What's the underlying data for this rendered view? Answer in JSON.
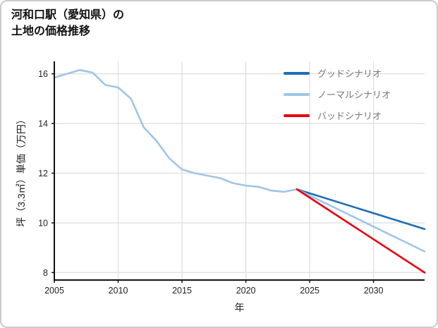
{
  "header": {
    "title_lines": [
      "河和口駅（愛知県）の",
      "土地の価格推移"
    ]
  },
  "chart_data": {
    "type": "line",
    "title": "河和口駅（愛知県）の土地の価格推移",
    "xlabel": "年",
    "ylabel": "坪（3.3㎡）単価（万円）",
    "xlim": [
      2005,
      2034
    ],
    "ylim": [
      7.7,
      16.5
    ],
    "xticks": [
      2005,
      2010,
      2015,
      2020,
      2025,
      2030
    ],
    "yticks": [
      8,
      10,
      12,
      14,
      16
    ],
    "grid": true,
    "legend_position": "upper-right",
    "history": {
      "color": "#9fc5e8",
      "x": [
        2005,
        2006,
        2007,
        2008,
        2009,
        2010,
        2011,
        2012,
        2013,
        2014,
        2015,
        2016,
        2017,
        2018,
        2019,
        2020,
        2021,
        2022,
        2023,
        2024
      ],
      "values": [
        15.85,
        16.0,
        16.15,
        16.05,
        15.55,
        15.45,
        15.0,
        13.85,
        13.3,
        12.6,
        12.15,
        12.0,
        11.9,
        11.8,
        11.6,
        11.5,
        11.45,
        11.3,
        11.25,
        11.35
      ]
    },
    "scenarios": [
      {
        "name": "グッドシナリオ",
        "color": "#1f6eb4",
        "x": [
          2024,
          2034
        ],
        "values": [
          11.35,
          9.75
        ]
      },
      {
        "name": "ノーマルシナリオ",
        "color": "#9fc5e8",
        "x": [
          2024,
          2034
        ],
        "values": [
          11.35,
          8.85
        ]
      },
      {
        "name": "バッドシナリオ",
        "color": "#e8000d",
        "x": [
          2024,
          2034
        ],
        "values": [
          11.35,
          8.0
        ]
      }
    ]
  }
}
